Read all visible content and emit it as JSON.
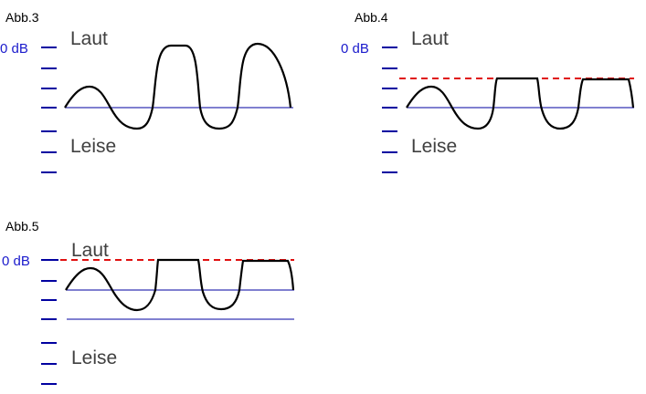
{
  "figures": [
    {
      "label": "Abb.3",
      "db_label": "0 dB",
      "loud": "Laut",
      "quiet": "Leise"
    },
    {
      "label": "Abb.4",
      "db_label": "0 dB",
      "loud": "Laut",
      "quiet": "Leise"
    },
    {
      "label": "Abb.5",
      "db_label": "0 dB",
      "loud": "Laut",
      "quiet": "Leise"
    }
  ],
  "colors": {
    "scale": "#0000a0",
    "limit": "#e01010",
    "wave": "#000000"
  }
}
